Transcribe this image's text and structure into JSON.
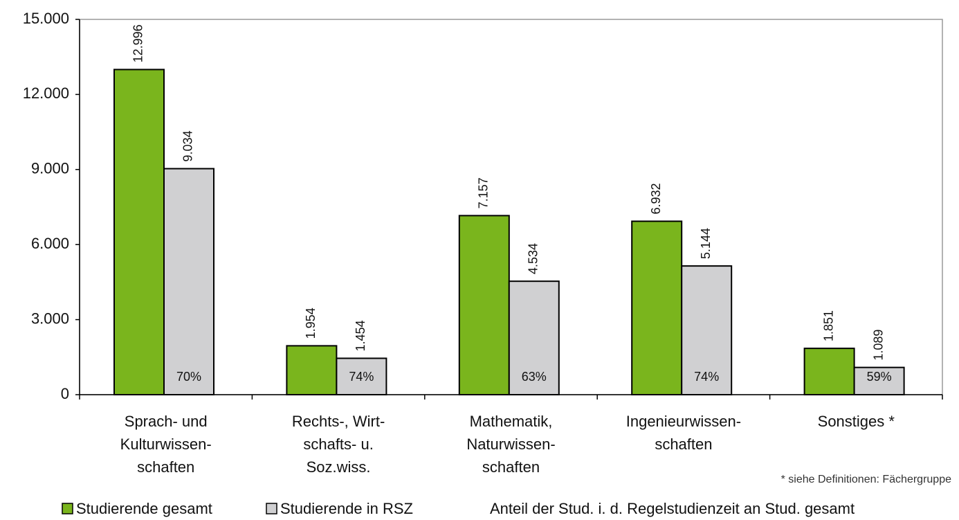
{
  "chart_data": {
    "type": "bar",
    "categories": [
      [
        "Sprach- und",
        "Kulturwissen-",
        "schaften"
      ],
      [
        "Rechts-, Wirt-",
        "schafts- u.",
        "Soz.wiss."
      ],
      [
        "Mathematik,",
        "Naturwissen-",
        "schaften"
      ],
      [
        "Ingenieurwissen-",
        "schaften"
      ],
      [
        "Sonstiges *"
      ]
    ],
    "series": [
      {
        "name": "Studierende gesamt",
        "color": "#7ab51d",
        "values": [
          12996,
          1954,
          7157,
          6932,
          1851
        ],
        "value_labels": [
          "12.996",
          "1.954",
          "7.157",
          "6.932",
          "1.851"
        ]
      },
      {
        "name": "Studierende in RSZ",
        "color": "#d0d0d2",
        "values": [
          9034,
          1454,
          4534,
          5144,
          1089
        ],
        "value_labels": [
          "9.034",
          "1.454",
          "4.534",
          "5.144",
          "1.089"
        ]
      }
    ],
    "shares": {
      "name": "Anteil der Stud. i. d. Regelstudienzeit an Stud. gesamt",
      "values": [
        70,
        74,
        63,
        74,
        59
      ],
      "value_labels": [
        "70%",
        "74%",
        "63%",
        "74%",
        "59%"
      ]
    },
    "note": "* siehe Definitionen: Fächergruppe",
    "ylim": [
      0,
      15000
    ],
    "yticks": [
      0,
      {
        "value": 3000,
        "label": "3.000"
      },
      {
        "value": 6000,
        "label": "6.000"
      },
      {
        "value": 9000,
        "label": "9.000"
      },
      {
        "value": 12000,
        "label": "12.000"
      },
      {
        "value": 15000,
        "label": "15.000"
      }
    ]
  }
}
